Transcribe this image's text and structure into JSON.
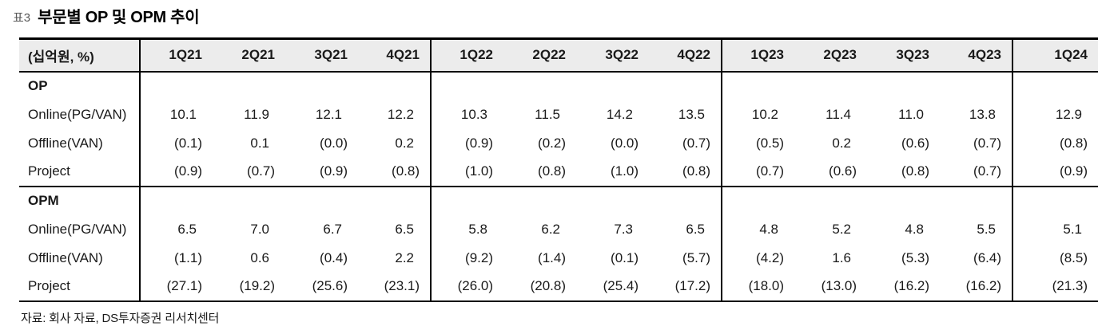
{
  "title": {
    "tag": "표3",
    "text": "부문별 OP 및 OPM 추이"
  },
  "table": {
    "unit_label": "(십억원, %)",
    "columns": [
      "1Q21",
      "2Q21",
      "3Q21",
      "4Q21",
      "1Q22",
      "2Q22",
      "3Q22",
      "4Q22",
      "1Q23",
      "2Q23",
      "3Q23",
      "4Q23",
      "1Q24"
    ],
    "sections": [
      {
        "name": "OP",
        "rows": [
          {
            "label": "Online(PG/VAN)",
            "values": [
              "10.1",
              "11.9",
              "12.1",
              "12.2",
              "10.3",
              "11.5",
              "14.2",
              "13.5",
              "10.2",
              "11.4",
              "11.0",
              "13.8",
              "12.9"
            ]
          },
          {
            "label": "Offline(VAN)",
            "values": [
              "(0.1)",
              "0.1",
              "(0.0)",
              "0.2",
              "(0.9)",
              "(0.2)",
              "(0.0)",
              "(0.7)",
              "(0.5)",
              "0.2",
              "(0.6)",
              "(0.7)",
              "(0.8)"
            ]
          },
          {
            "label": "Project",
            "values": [
              "(0.9)",
              "(0.7)",
              "(0.9)",
              "(0.8)",
              "(1.0)",
              "(0.8)",
              "(1.0)",
              "(0.8)",
              "(0.7)",
              "(0.6)",
              "(0.8)",
              "(0.7)",
              "(0.9)"
            ]
          }
        ]
      },
      {
        "name": "OPM",
        "rows": [
          {
            "label": "Online(PG/VAN)",
            "values": [
              "6.5",
              "7.0",
              "6.7",
              "6.5",
              "5.8",
              "6.2",
              "7.3",
              "6.5",
              "4.8",
              "5.2",
              "4.8",
              "5.5",
              "5.1"
            ]
          },
          {
            "label": "Offline(VAN)",
            "values": [
              "(1.1)",
              "0.6",
              "(0.4)",
              "2.2",
              "(9.2)",
              "(1.4)",
              "(0.1)",
              "(5.7)",
              "(4.2)",
              "1.6",
              "(5.3)",
              "(6.4)",
              "(8.5)"
            ]
          },
          {
            "label": "Project",
            "values": [
              "(27.1)",
              "(19.2)",
              "(25.6)",
              "(23.1)",
              "(26.0)",
              "(20.8)",
              "(25.4)",
              "(17.2)",
              "(18.0)",
              "(13.0)",
              "(16.2)",
              "(16.2)",
              "(21.3)"
            ]
          }
        ]
      }
    ]
  },
  "footer": {
    "source": "자료: 회사 자료, DS투자증권 리서치센터"
  },
  "colors": {
    "header_bg": "#ececec",
    "border": "#000000",
    "title_tag": "#595959",
    "text": "#1a1a1a"
  }
}
